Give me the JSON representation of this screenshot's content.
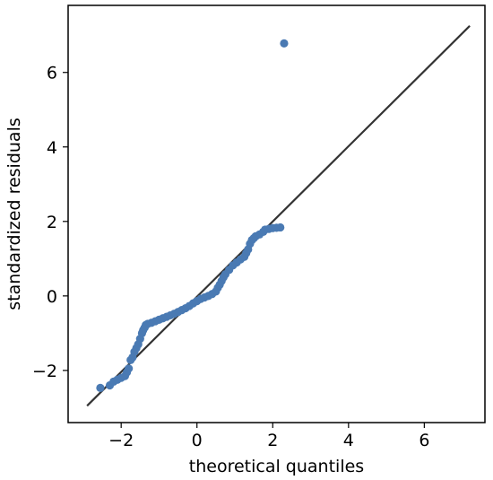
{
  "chart_data": {
    "type": "scatter",
    "xlabel": "theoretical quantiles",
    "ylabel": "standardized residuals",
    "xlim": [
      -3.4,
      7.6
    ],
    "ylim": [
      -3.4,
      7.8
    ],
    "x_ticks": [
      -2,
      0,
      2,
      4,
      6
    ],
    "y_ticks": [
      -2,
      0,
      2,
      4,
      6
    ],
    "x_tick_labels": [
      "−2",
      "0",
      "2",
      "4",
      "6"
    ],
    "y_tick_labels": [
      "−2",
      "0",
      "2",
      "4",
      "6"
    ],
    "grid": false,
    "reference_line": {
      "x": [
        -2.9,
        7.2
      ],
      "y": [
        -2.95,
        7.25
      ],
      "color": "#333333"
    },
    "marker_color": "#4a7ab3",
    "points": [
      [
        -2.55,
        -2.47
      ],
      [
        -2.3,
        -2.4
      ],
      [
        -2.2,
        -2.3
      ],
      [
        -2.1,
        -2.25
      ],
      [
        -2.0,
        -2.2
      ],
      [
        -1.9,
        -2.15
      ],
      [
        -1.85,
        -2.05
      ],
      [
        -1.8,
        -1.95
      ],
      [
        -1.75,
        -1.72
      ],
      [
        -1.7,
        -1.65
      ],
      [
        -1.65,
        -1.5
      ],
      [
        -1.6,
        -1.4
      ],
      [
        -1.55,
        -1.3
      ],
      [
        -1.5,
        -1.15
      ],
      [
        -1.45,
        -1.0
      ],
      [
        -1.42,
        -0.92
      ],
      [
        -1.38,
        -0.85
      ],
      [
        -1.35,
        -0.78
      ],
      [
        -1.3,
        -0.75
      ],
      [
        -1.2,
        -0.72
      ],
      [
        -1.1,
        -0.68
      ],
      [
        -1.0,
        -0.64
      ],
      [
        -0.9,
        -0.6
      ],
      [
        -0.8,
        -0.56
      ],
      [
        -0.7,
        -0.52
      ],
      [
        -0.6,
        -0.48
      ],
      [
        -0.5,
        -0.43
      ],
      [
        -0.4,
        -0.38
      ],
      [
        -0.3,
        -0.33
      ],
      [
        -0.2,
        -0.27
      ],
      [
        -0.1,
        -0.2
      ],
      [
        0.0,
        -0.14
      ],
      [
        0.1,
        -0.08
      ],
      [
        0.2,
        -0.04
      ],
      [
        0.3,
        0.0
      ],
      [
        0.4,
        0.05
      ],
      [
        0.5,
        0.12
      ],
      [
        0.55,
        0.22
      ],
      [
        0.6,
        0.3
      ],
      [
        0.65,
        0.4
      ],
      [
        0.7,
        0.5
      ],
      [
        0.75,
        0.58
      ],
      [
        0.85,
        0.7
      ],
      [
        0.95,
        0.82
      ],
      [
        1.05,
        0.9
      ],
      [
        1.15,
        0.98
      ],
      [
        1.25,
        1.05
      ],
      [
        1.3,
        1.15
      ],
      [
        1.35,
        1.25
      ],
      [
        1.4,
        1.4
      ],
      [
        1.45,
        1.5
      ],
      [
        1.5,
        1.55
      ],
      [
        1.55,
        1.6
      ],
      [
        1.65,
        1.65
      ],
      [
        1.75,
        1.72
      ],
      [
        1.8,
        1.78
      ],
      [
        1.9,
        1.8
      ],
      [
        2.0,
        1.82
      ],
      [
        2.1,
        1.83
      ],
      [
        2.2,
        1.84
      ],
      [
        2.3,
        6.78
      ]
    ]
  }
}
